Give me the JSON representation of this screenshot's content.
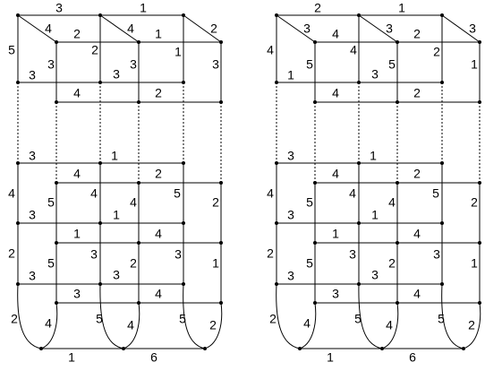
{
  "figures": [
    {
      "labels": [
        "3",
        "1",
        "4",
        "2",
        "4",
        "1",
        "2",
        "5",
        "3",
        "2",
        "3",
        "1",
        "3",
        "3",
        "3",
        "4",
        "2",
        "3",
        "1",
        "4",
        "2",
        "4",
        "4",
        "5",
        "4",
        "5",
        "2",
        "1",
        "3",
        "1",
        "4",
        "2",
        "5",
        "3",
        "2",
        "3",
        "1",
        "3",
        "3",
        "3",
        "4",
        "2",
        "4",
        "5",
        "4",
        "5",
        "2",
        "1",
        "6",
        "3"
      ]
    },
    {
      "labels": [
        "2",
        "1",
        "3",
        "4",
        "3",
        "2",
        "3",
        "4",
        "5",
        "4",
        "5",
        "2",
        "1",
        "3",
        "1",
        "4",
        "2",
        "3",
        "1",
        "4",
        "2",
        "4",
        "4",
        "5",
        "4",
        "5",
        "2",
        "1",
        "3",
        "1",
        "4",
        "2",
        "5",
        "3",
        "2",
        "3",
        "1",
        "3",
        "3",
        "3",
        "4",
        "2",
        "4",
        "5",
        "4",
        "5",
        "2",
        "1",
        "6",
        "3"
      ]
    }
  ]
}
